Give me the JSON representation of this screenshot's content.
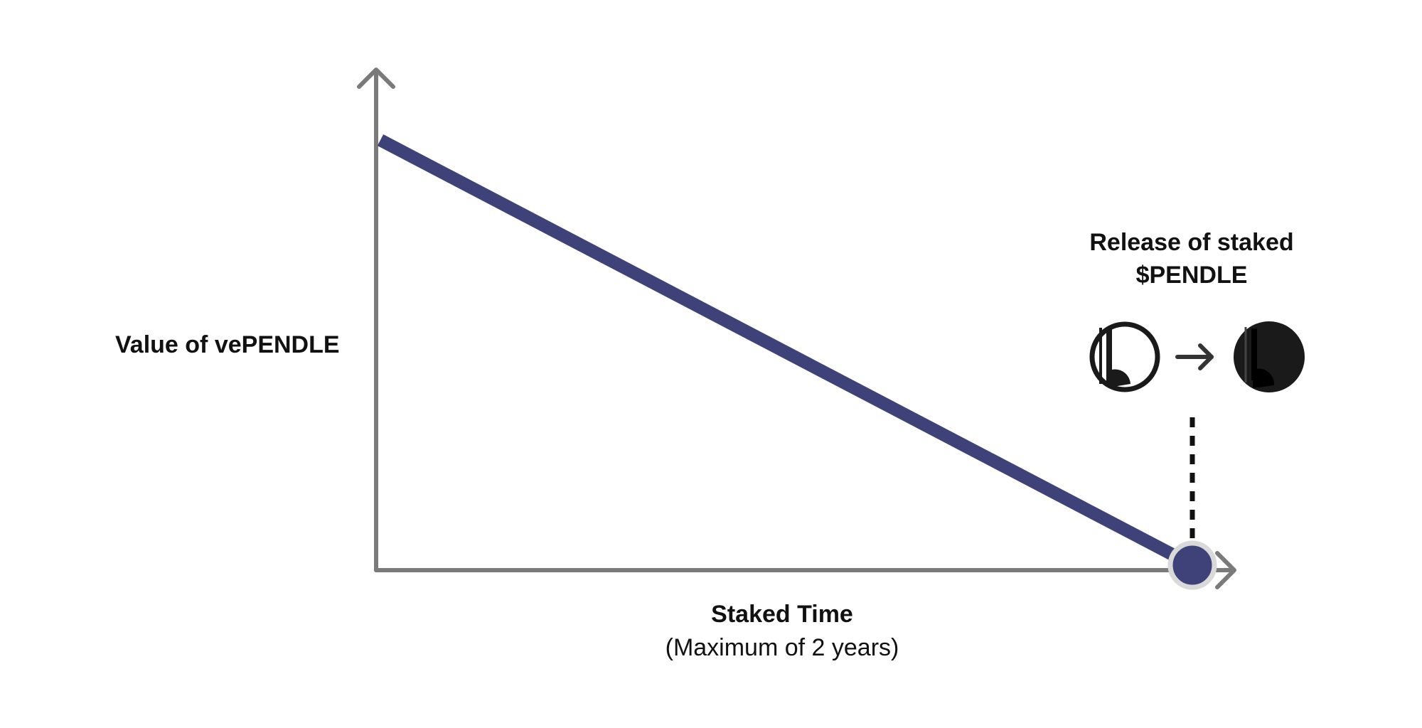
{
  "diagram": {
    "y_axis_label": "Value of vePENDLE",
    "x_axis_label": "Staked Time",
    "x_axis_sublabel": "(Maximum of 2 years)",
    "release_label": "Release of staked $PENDLE",
    "colors": {
      "line": "#3e4279",
      "axis": "#7a7a7a",
      "endpoint_fill": "#3e4279",
      "endpoint_ring": "#d9d9d9",
      "icon": "#1a1a1a",
      "dashed_line": "#111111"
    },
    "icons": {
      "start": "token-outline-icon",
      "arrow": "arrow-right-icon",
      "end": "token-filled-icon"
    }
  }
}
